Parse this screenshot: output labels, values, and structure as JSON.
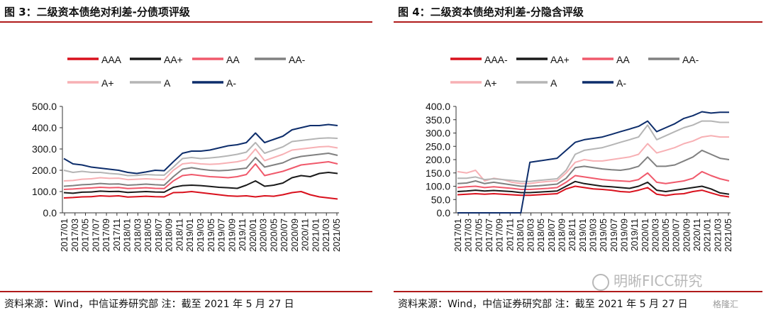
{
  "colors": {
    "AAA": "#d9111d",
    "AA+": "#1a1a1a",
    "AA": "#f0596b",
    "AA-": "#808080",
    "A+": "#f7b0b4",
    "A": "#b5b5b5",
    "A-": "#0d2d6b",
    "rule": "#b01b1b"
  },
  "watermark": {
    "text": "明晰FICC研究",
    "sub": "格隆汇"
  },
  "chart_data": [
    {
      "type": "line",
      "title": "图 3：二级资本债绝对利差-分债项评级",
      "source": "资料来源：Wind，中信证券研究部  注：截至 2021 年 5 月 27 日",
      "ylim": [
        0,
        500
      ],
      "yticks": [
        "500.0",
        "400.0",
        "300.0",
        "200.0",
        "100.0",
        "0.0"
      ],
      "ytick_values": [
        500,
        400,
        300,
        200,
        100,
        0
      ],
      "x_ticks": [
        "2017/01",
        "2017/03",
        "2017/05",
        "2017/07",
        "2017/09",
        "2017/11",
        "2018/01",
        "2018/03",
        "2018/05",
        "2018/07",
        "2018/09",
        "2018/11",
        "2019/01",
        "2019/03",
        "2019/05",
        "2019/07",
        "2019/09",
        "2019/11",
        "2020/01",
        "2020/03",
        "2020/05",
        "2020/07",
        "2020/09",
        "2020/11",
        "2021/01",
        "2021/03",
        "2021/05"
      ],
      "legend": [
        "AAA",
        "AA+",
        "AA",
        "AA-",
        "A+",
        "A",
        "A-"
      ],
      "series": [
        {
          "name": "AAA",
          "values": [
            70,
            72,
            75,
            76,
            80,
            78,
            80,
            74,
            76,
            78,
            76,
            75,
            95,
            96,
            100,
            95,
            90,
            85,
            80,
            78,
            80,
            75,
            80,
            78,
            85,
            95,
            100,
            85,
            75,
            70,
            65
          ]
        },
        {
          "name": "AA+",
          "values": [
            95,
            92,
            97,
            98,
            102,
            100,
            101,
            96,
            98,
            100,
            98,
            97,
            120,
            128,
            130,
            128,
            124,
            120,
            118,
            115,
            130,
            150,
            125,
            130,
            140,
            165,
            175,
            170,
            185,
            190,
            185
          ]
        },
        {
          "name": "AA",
          "values": [
            110,
            112,
            115,
            117,
            120,
            118,
            119,
            114,
            116,
            118,
            115,
            114,
            150,
            175,
            180,
            175,
            170,
            168,
            165,
            170,
            180,
            230,
            175,
            185,
            195,
            210,
            225,
            230,
            235,
            240,
            230
          ]
        },
        {
          "name": "AA-",
          "values": [
            125,
            128,
            132,
            134,
            138,
            135,
            136,
            130,
            132,
            135,
            132,
            130,
            170,
            205,
            212,
            205,
            200,
            198,
            200,
            205,
            210,
            260,
            215,
            225,
            235,
            255,
            265,
            270,
            275,
            280,
            270
          ]
        },
        {
          "name": "A+",
          "values": [
            150,
            152,
            158,
            160,
            165,
            162,
            163,
            156,
            158,
            160,
            158,
            156,
            200,
            230,
            235,
            230,
            228,
            230,
            235,
            240,
            250,
            300,
            245,
            260,
            275,
            295,
            300,
            305,
            310,
            312,
            305
          ]
        },
        {
          "name": "A",
          "values": [
            200,
            190,
            195,
            190,
            190,
            185,
            182,
            175,
            176,
            180,
            178,
            177,
            215,
            255,
            260,
            255,
            258,
            262,
            268,
            275,
            285,
            330,
            280,
            295,
            310,
            335,
            340,
            345,
            350,
            352,
            350
          ]
        },
        {
          "name": "A-",
          "values": [
            255,
            230,
            225,
            215,
            210,
            205,
            200,
            190,
            185,
            192,
            200,
            198,
            240,
            280,
            290,
            290,
            295,
            305,
            315,
            320,
            330,
            375,
            330,
            345,
            360,
            390,
            400,
            410,
            410,
            415,
            410
          ]
        }
      ]
    },
    {
      "type": "line",
      "title": "图 4：二级资本债绝对利差-分隐含评级",
      "source": "资料来源：Wind，中信证券研究部  注：截至 2021 年 5 月 27 日",
      "ylim": [
        0,
        400
      ],
      "yticks": [
        "400.0",
        "350.0",
        "300.0",
        "250.0",
        "200.0",
        "150.0",
        "100.0",
        "50.0",
        "0.0"
      ],
      "ytick_values": [
        400,
        350,
        300,
        250,
        200,
        150,
        100,
        50,
        0
      ],
      "x_ticks": [
        "2017/01",
        "2017/03",
        "2017/05",
        "2017/07",
        "2017/09",
        "2017/11",
        "2018/01",
        "2018/03",
        "2018/05",
        "2018/07",
        "2018/09",
        "2018/11",
        "2019/01",
        "2019/03",
        "2019/05",
        "2019/07",
        "2019/09",
        "2019/11",
        "2020/01",
        "2020/03",
        "2020/05",
        "2020/07",
        "2020/09",
        "2020/11",
        "2021/01",
        "2021/03",
        "2021/05"
      ],
      "legend": [
        "AAA-",
        "AA+",
        "AA",
        "AA-",
        "A+",
        "A",
        "A-"
      ],
      "series": [
        {
          "name": "AAA-",
          "values": [
            68,
            70,
            72,
            70,
            72,
            70,
            68,
            66,
            66,
            68,
            70,
            72,
            90,
            100,
            95,
            90,
            88,
            85,
            80,
            78,
            85,
            95,
            70,
            65,
            70,
            72,
            80,
            85,
            75,
            65,
            60
          ]
        },
        {
          "name": "AA+",
          "values": [
            80,
            82,
            85,
            82,
            84,
            82,
            80,
            76,
            76,
            78,
            80,
            82,
            100,
            118,
            110,
            105,
            100,
            98,
            95,
            92,
            100,
            115,
            85,
            80,
            85,
            90,
            95,
            100,
            90,
            75,
            70
          ]
        },
        {
          "name": "AA",
          "values": [
            95,
            98,
            100,
            95,
            98,
            95,
            92,
            88,
            88,
            90,
            92,
            95,
            115,
            140,
            135,
            130,
            125,
            122,
            120,
            118,
            125,
            150,
            115,
            110,
            115,
            120,
            130,
            155,
            140,
            128,
            120
          ]
        },
        {
          "name": "AA-",
          "values": [
            110,
            112,
            120,
            110,
            115,
            110,
            105,
            100,
            100,
            102,
            105,
            108,
            130,
            170,
            175,
            170,
            165,
            162,
            160,
            165,
            175,
            210,
            175,
            175,
            180,
            195,
            210,
            235,
            220,
            205,
            200
          ]
        },
        {
          "name": "A+",
          "values": [
            155,
            150,
            160,
            120,
            130,
            125,
            115,
            110,
            110,
            115,
            118,
            120,
            150,
            190,
            200,
            195,
            195,
            200,
            205,
            210,
            220,
            260,
            225,
            235,
            245,
            260,
            270,
            285,
            290,
            285,
            285
          ]
        },
        {
          "name": "A",
          "values": [
            130,
            130,
            135,
            125,
            128,
            125,
            122,
            118,
            118,
            122,
            125,
            128,
            160,
            220,
            235,
            240,
            245,
            255,
            265,
            275,
            285,
            330,
            275,
            290,
            305,
            320,
            330,
            345,
            345,
            340,
            340
          ]
        },
        {
          "name": "A-",
          "values": [
            0,
            0,
            0,
            0,
            0,
            0,
            0,
            0,
            190,
            195,
            200,
            205,
            235,
            265,
            275,
            280,
            285,
            295,
            305,
            315,
            325,
            345,
            305,
            320,
            335,
            355,
            365,
            380,
            375,
            378,
            378
          ]
        }
      ]
    }
  ]
}
